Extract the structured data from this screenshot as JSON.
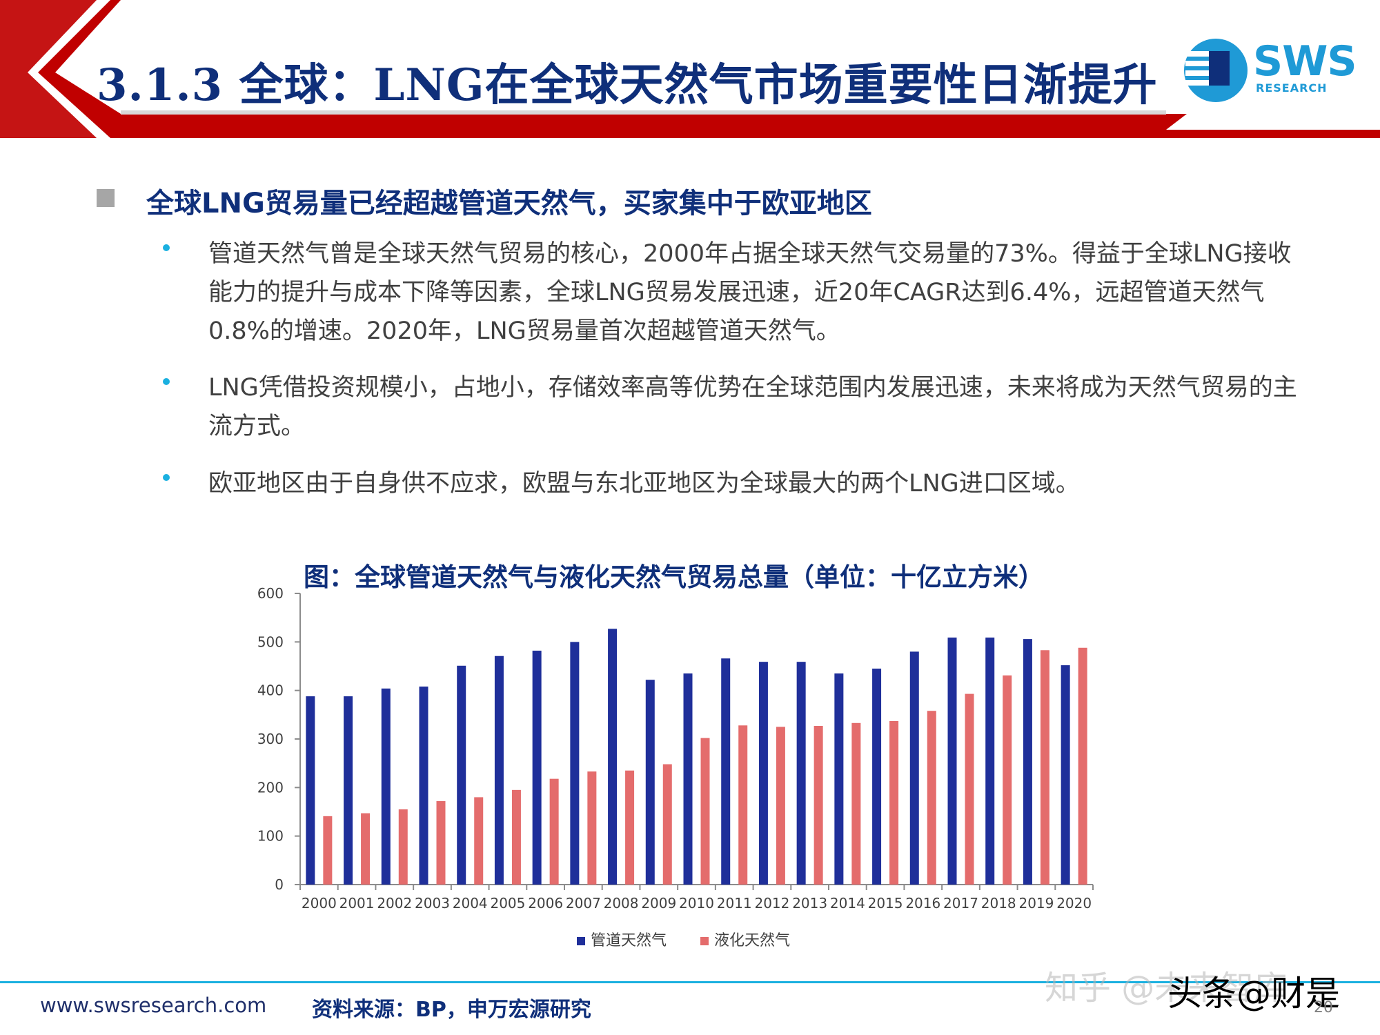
{
  "header": {
    "title": "3.1.3 全球：LNG在全球天然气市场重要性日渐提升",
    "logo_text": "SWS",
    "logo_subtext": "RESEARCH",
    "brand_red": "#c00000",
    "brand_blue": "#0f2f7a",
    "accent_cyan": "#1ab0e0"
  },
  "section": {
    "heading": "全球LNG贸易量已经超越管道天然气，买家集中于欧亚地区",
    "bullets": [
      {
        "text": "管道天然气曾是全球天然气贸易的核心，2000年占据全球天然气交易量的73%。得益于全球LNG接收能力的提升与成本下降等因素，全球LNG贸易发展迅速，近20年CAGR达到6.4%，远超管道天然气0.8%的增速。2020年，LNG贸易量首次超越管道天然气。"
      },
      {
        "text": "LNG凭借投资规模小，占地小，存储效率高等优势在全球范围内发展迅速，未来将成为天然气贸易的主流方式。"
      },
      {
        "text": "欧亚地区由于自身供不应求，欧盟与东北亚地区为全球最大的两个LNG进口区域。"
      }
    ]
  },
  "chart_data": {
    "type": "bar",
    "title": "图：全球管道天然气与液化天然气贸易总量（单位：十亿立方米）",
    "categories": [
      "2000",
      "2001",
      "2002",
      "2003",
      "2004",
      "2005",
      "2006",
      "2007",
      "2008",
      "2009",
      "2010",
      "2011",
      "2012",
      "2013",
      "2014",
      "2015",
      "2016",
      "2017",
      "2018",
      "2019",
      "2020"
    ],
    "series": [
      {
        "name": "管道天然气",
        "color": "#1f2f9a",
        "values": [
          388,
          388,
          404,
          408,
          451,
          471,
          482,
          500,
          527,
          422,
          435,
          466,
          459,
          459,
          435,
          445,
          480,
          509,
          509,
          506,
          452
        ]
      },
      {
        "name": "液化天然气",
        "color": "#e46c6c",
        "values": [
          141,
          147,
          155,
          172,
          180,
          195,
          218,
          233,
          235,
          248,
          302,
          328,
          325,
          327,
          333,
          337,
          358,
          393,
          431,
          483,
          488
        ]
      }
    ],
    "ylim": [
      0,
      600
    ],
    "yticks": [
      0,
      100,
      200,
      300,
      400,
      500,
      600
    ],
    "xlabel": "",
    "ylabel": "",
    "grid": false,
    "legend_position": "bottom"
  },
  "footer": {
    "url": "www.swsresearch.com",
    "source": "资料来源：BP，申万宏源研究",
    "page_number": "20",
    "watermark_1": "知乎 @未来智库",
    "watermark_2": "头条@财是"
  }
}
